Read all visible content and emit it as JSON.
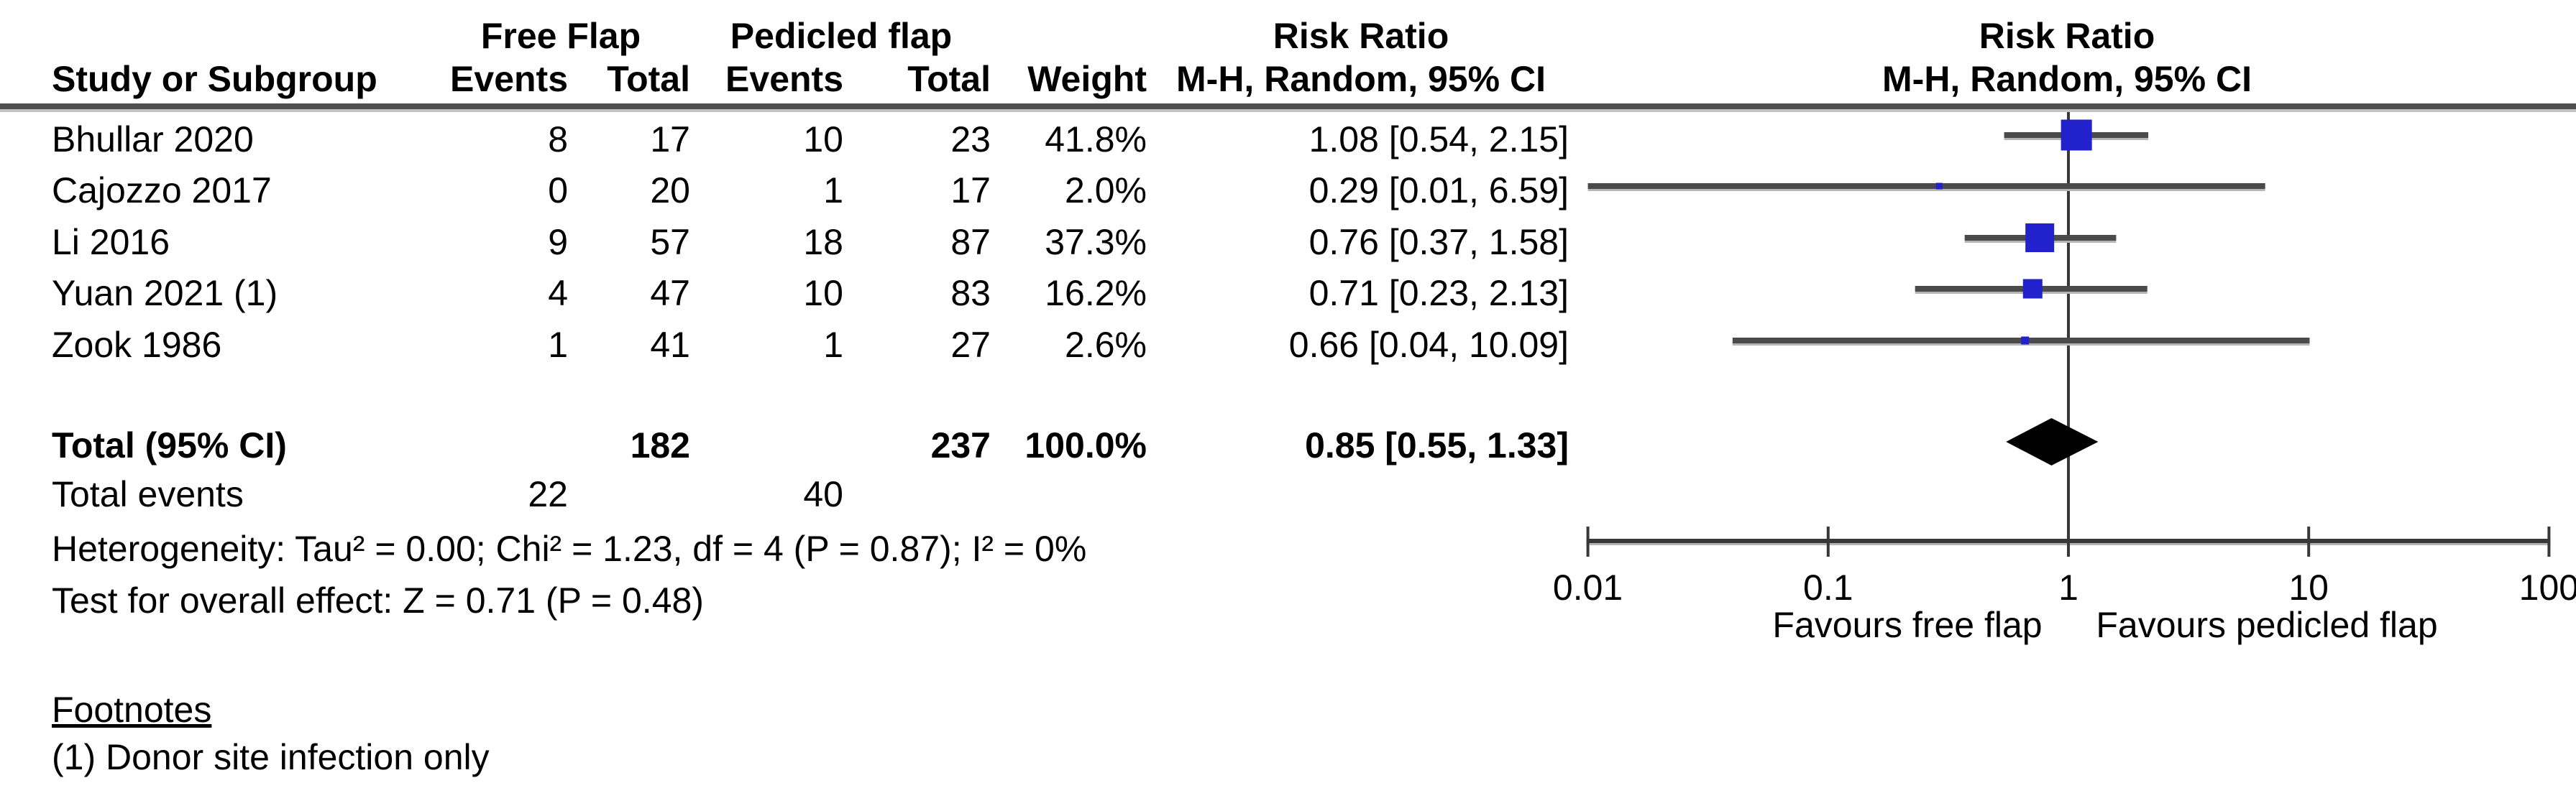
{
  "table": {
    "col_study": "Study or Subgroup",
    "col_group1": "Free Flap",
    "col_group2": "Pedicled flap",
    "col_events": "Events",
    "col_total": "Total",
    "col_weight": "Weight",
    "effect_header_line1": "Risk Ratio",
    "effect_header_line2": "M-H, Random, 95% CI",
    "plot_header_line1": "Risk Ratio",
    "plot_header_line2": "M-H, Random, 95% CI"
  },
  "chart_data": {
    "type": "forest",
    "effect_measure": "Risk Ratio",
    "method": "M-H, Random, 95% CI",
    "x_scale": "log",
    "x_ticks": [
      0.01,
      0.1,
      1,
      10,
      100
    ],
    "x_range": [
      0.01,
      100
    ],
    "favours_left": "Favours free flap",
    "favours_right": "Favours pedicled flap",
    "studies": [
      {
        "name": "Bhullar 2020",
        "ff_events": "8",
        "ff_total": "17",
        "pf_events": "10",
        "pf_total": "23",
        "weight": "41.8%",
        "weight_value": 41.8,
        "rr": 1.08,
        "ci_low": 0.54,
        "ci_high": 2.15,
        "rr_label": "1.08 [0.54, 2.15]"
      },
      {
        "name": "Cajozzo 2017",
        "ff_events": "0",
        "ff_total": "20",
        "pf_events": "1",
        "pf_total": "17",
        "weight": "2.0%",
        "weight_value": 2.0,
        "rr": 0.29,
        "ci_low": 0.01,
        "ci_high": 6.59,
        "rr_label": "0.29 [0.01, 6.59]"
      },
      {
        "name": "Li 2016",
        "ff_events": "9",
        "ff_total": "57",
        "pf_events": "18",
        "pf_total": "87",
        "weight": "37.3%",
        "weight_value": 37.3,
        "rr": 0.76,
        "ci_low": 0.37,
        "ci_high": 1.58,
        "rr_label": "0.76 [0.37, 1.58]"
      },
      {
        "name": "Yuan 2021 (1)",
        "ff_events": "4",
        "ff_total": "47",
        "pf_events": "10",
        "pf_total": "83",
        "weight": "16.2%",
        "weight_value": 16.2,
        "rr": 0.71,
        "ci_low": 0.23,
        "ci_high": 2.13,
        "rr_label": "0.71 [0.23, 2.13]"
      },
      {
        "name": "Zook 1986",
        "ff_events": "1",
        "ff_total": "41",
        "pf_events": "1",
        "pf_total": "27",
        "weight": "2.6%",
        "weight_value": 2.6,
        "rr": 0.66,
        "ci_low": 0.04,
        "ci_high": 10.09,
        "rr_label": "0.66 [0.04, 10.09]"
      }
    ],
    "total": {
      "name": "Total (95% CI)",
      "ff_total": "182",
      "pf_total": "237",
      "weight": "100.0%",
      "rr": 0.85,
      "ci_low": 0.55,
      "ci_high": 1.33,
      "rr_label": "0.85 [0.55, 1.33]"
    },
    "total_events": {
      "name": "Total events",
      "ff": "22",
      "pf": "40"
    }
  },
  "stats": {
    "heterogeneity": "Heterogeneity: Tau² = 0.00; Chi² = 1.23, df = 4 (P = 0.87); I² = 0%",
    "overall_effect": "Test for overall effect: Z = 0.71 (P = 0.48)"
  },
  "footnotes": {
    "heading": "Footnotes",
    "items": [
      "(1) Donor site infection only"
    ]
  },
  "colors": {
    "square_blue": "#2122cb",
    "diamond_black": "#000000",
    "ci_line_dark": "#4a4a4a",
    "ci_line_light": "#b5b5b5",
    "axis_dark": "#383838",
    "rule_dark": "#4f4f4f",
    "rule_light": "#c3c3c3",
    "text": "#000000"
  }
}
